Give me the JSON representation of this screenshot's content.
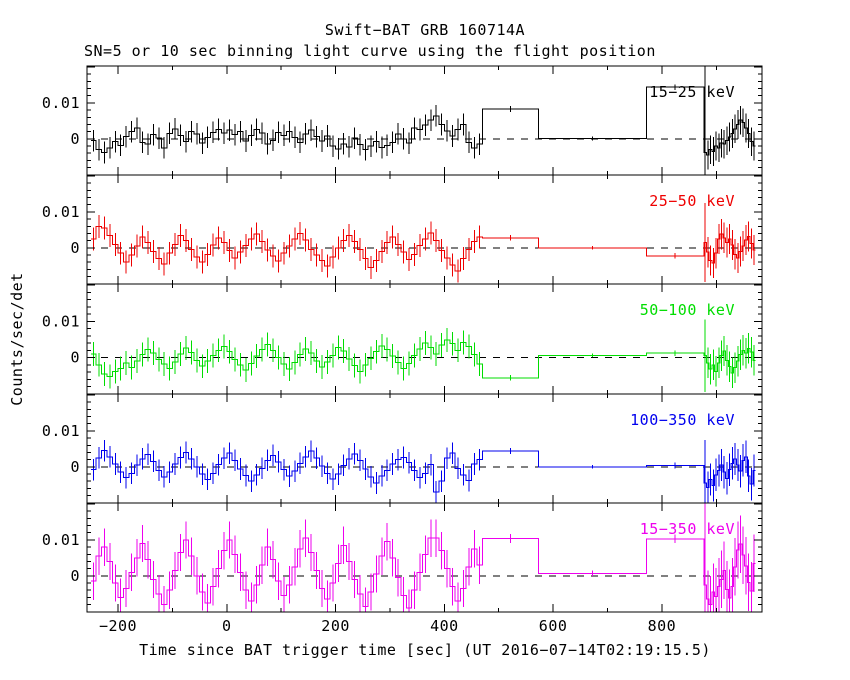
{
  "chart_data": {
    "type": "line",
    "style": "stepped-histogram-with-error-bars",
    "title": "Swift−BAT GRB 160714A",
    "subtitle": "SN=5 or 10 sec binning light curve using the flight position",
    "xlabel": "Time since BAT trigger time [sec] (UT 2016−07−14T02:19:15.5)",
    "ylabel": "Counts/sec/det",
    "xlim": [
      -257,
      984
    ],
    "ylim_per_panel": [
      -0.01006,
      0.02028
    ],
    "grid": false,
    "zero_line": {
      "value": 0,
      "style": "dashed",
      "color": "#000000"
    },
    "axis_color": "#000000",
    "background_color": "#ffffff",
    "band_label_position": "top-right",
    "xticks": {
      "major": [
        -200,
        0,
        200,
        400,
        600,
        800
      ],
      "labels": [
        "−200",
        "0",
        "200",
        "400",
        "600",
        "800"
      ],
      "minor": [
        -100,
        100,
        300,
        500,
        700,
        900
      ]
    },
    "yticks": {
      "labeled": [
        {
          "value": 0.01,
          "label": "0.01"
        },
        {
          "value": 0,
          "label": "0"
        }
      ],
      "major_step": 0.01,
      "minor_step": 0.002
    },
    "value_unit": 0.0001,
    "main_start": -250,
    "bin_sec_main": 10,
    "tail_start": 877,
    "bin_sec_tail": 5,
    "series": [
      {
        "name": "15−25 keV",
        "color": "#000000",
        "main": [
          -5,
          -30,
          -38,
          -25,
          -8,
          -18,
          6,
          20,
          30,
          -10,
          -15,
          12,
          2,
          -25,
          15,
          28,
          10,
          -8,
          20,
          14,
          -12,
          4,
          18,
          26,
          16,
          24,
          12,
          20,
          -6,
          10,
          26,
          16,
          -14,
          -4,
          18,
          10,
          20,
          4,
          -10,
          14,
          24,
          6,
          -6,
          8,
          -20,
          -28,
          -14,
          -22,
          2,
          -16,
          -30,
          -20,
          -8,
          -24,
          -18,
          -10,
          14,
          0,
          -12,
          30,
          26,
          38,
          52,
          64,
          40,
          22,
          8,
          26,
          40,
          -10,
          -25,
          -15
        ],
        "main_err": 30,
        "wide": [
          [
            470,
            573,
            83,
            8
          ],
          [
            573,
            772,
            1,
            5
          ],
          [
            772,
            877,
            144,
            8
          ]
        ],
        "tail": [
          -38,
          -45,
          -30,
          -35,
          -20,
          -25,
          -12,
          -15,
          -5,
          5,
          15,
          28,
          40,
          52,
          45,
          30,
          15,
          -8,
          -20
        ],
        "tail_err": 40,
        "tail_first_err": 300
      },
      {
        "name": "25−50 keV",
        "color": "#ee0000",
        "main": [
          25,
          60,
          55,
          35,
          10,
          -15,
          -40,
          -20,
          5,
          30,
          15,
          -10,
          -30,
          -45,
          -15,
          10,
          35,
          20,
          -5,
          -25,
          -40,
          -18,
          8,
          28,
          15,
          -8,
          -28,
          -12,
          6,
          24,
          38,
          18,
          -6,
          -22,
          -36,
          -15,
          5,
          25,
          40,
          22,
          -5,
          -20,
          -35,
          -50,
          -25,
          0,
          20,
          35,
          18,
          -5,
          -30,
          -55,
          -35,
          -10,
          15,
          30,
          10,
          -12,
          -32,
          -18,
          6,
          25,
          42,
          20,
          -8,
          -28,
          -48,
          -65,
          -30,
          -5,
          18,
          30
        ],
        "main_err": 32,
        "wide": [
          [
            470,
            573,
            28,
            8
          ],
          [
            573,
            772,
            0,
            5
          ],
          [
            772,
            877,
            -22,
            8
          ]
        ],
        "tail": [
          15,
          -12,
          -35,
          -42,
          -15,
          25,
          38,
          28,
          15,
          25,
          8,
          -18,
          -28,
          -10,
          5,
          22,
          32,
          12,
          -6
        ],
        "tail_err": 42,
        "tail_first_err": 110
      },
      {
        "name": "50−100 keV",
        "color": "#00dd00",
        "main": [
          10,
          -20,
          -45,
          -52,
          -38,
          -30,
          -15,
          -28,
          -10,
          8,
          22,
          12,
          -5,
          -18,
          -30,
          -12,
          10,
          26,
          14,
          -8,
          -24,
          -10,
          6,
          20,
          30,
          16,
          -6,
          -20,
          -34,
          -16,
          4,
          22,
          36,
          20,
          0,
          -18,
          -32,
          -14,
          8,
          24,
          12,
          -10,
          -26,
          -12,
          6,
          28,
          18,
          -4,
          -22,
          -38,
          -20,
          -2,
          16,
          32,
          22,
          4,
          -14,
          -30,
          -16,
          6,
          24,
          40,
          28,
          10,
          34,
          48,
          38,
          20,
          42,
          30,
          8,
          -18
        ],
        "main_err": 33,
        "wide": [
          [
            470,
            573,
            -56,
            8
          ],
          [
            573,
            772,
            6,
            5
          ],
          [
            772,
            877,
            12,
            8
          ]
        ],
        "tail": [
          5,
          -15,
          -32,
          -20,
          -38,
          -15,
          5,
          18,
          -8,
          -25,
          -42,
          -28,
          -10,
          8,
          20,
          12,
          25,
          15,
          -8
        ],
        "tail_err": 42,
        "tail_first_err": 100
      },
      {
        "name": "100−350 keV",
        "color": "#0000ee",
        "main": [
          -8,
          25,
          45,
          28,
          8,
          -15,
          -30,
          -18,
          5,
          22,
          35,
          15,
          -10,
          -28,
          -15,
          8,
          26,
          40,
          22,
          0,
          -20,
          -35,
          -18,
          6,
          24,
          38,
          18,
          -6,
          -24,
          -40,
          -22,
          -4,
          18,
          32,
          14,
          -8,
          -26,
          -12,
          10,
          28,
          44,
          24,
          2,
          -18,
          -34,
          -20,
          4,
          22,
          36,
          18,
          -6,
          -28,
          -45,
          -25,
          -10,
          8,
          20,
          26,
          12,
          -10,
          -30,
          -18,
          6,
          -70,
          -40,
          24,
          38,
          -4,
          -22,
          -38,
          8,
          20
        ],
        "main_err": 30,
        "wide": [
          [
            470,
            573,
            44,
            8
          ],
          [
            573,
            772,
            0,
            5
          ],
          [
            772,
            877,
            4,
            8
          ]
        ],
        "tail": [
          -45,
          -58,
          -35,
          -52,
          -22,
          -10,
          5,
          -15,
          -32,
          -8,
          10,
          22,
          5,
          -12,
          18,
          28,
          -25,
          -48,
          -10
        ],
        "tail_err": 45,
        "tail_first_err": 120
      },
      {
        "name": "15−350 keV",
        "color": "#ee00ee",
        "main": [
          -15,
          55,
          80,
          40,
          -20,
          -60,
          -35,
          10,
          50,
          90,
          45,
          -10,
          -50,
          -80,
          -40,
          15,
          65,
          100,
          55,
          0,
          -45,
          -75,
          -30,
          20,
          70,
          100,
          60,
          10,
          -40,
          -70,
          -25,
          30,
          80,
          45,
          -15,
          -55,
          -25,
          25,
          75,
          105,
          65,
          15,
          -35,
          -65,
          -20,
          35,
          85,
          40,
          -10,
          -50,
          -85,
          -45,
          5,
          55,
          95,
          50,
          -5,
          -55,
          -90,
          -40,
          10,
          60,
          105,
          105,
          70,
          20,
          -30,
          -70,
          -35,
          25,
          75,
          30
        ],
        "main_err": 52,
        "wide": [
          [
            470,
            573,
            104,
            12
          ],
          [
            573,
            772,
            7,
            8
          ],
          [
            772,
            877,
            103,
            12
          ]
        ],
        "tail": [
          -25,
          -65,
          -80,
          -45,
          -58,
          -30,
          -10,
          15,
          -38,
          -62,
          -30,
          25,
          72,
          88,
          58,
          28,
          -18,
          -42,
          35
        ],
        "tail_err": 80,
        "tail_first_err": 300
      }
    ]
  }
}
